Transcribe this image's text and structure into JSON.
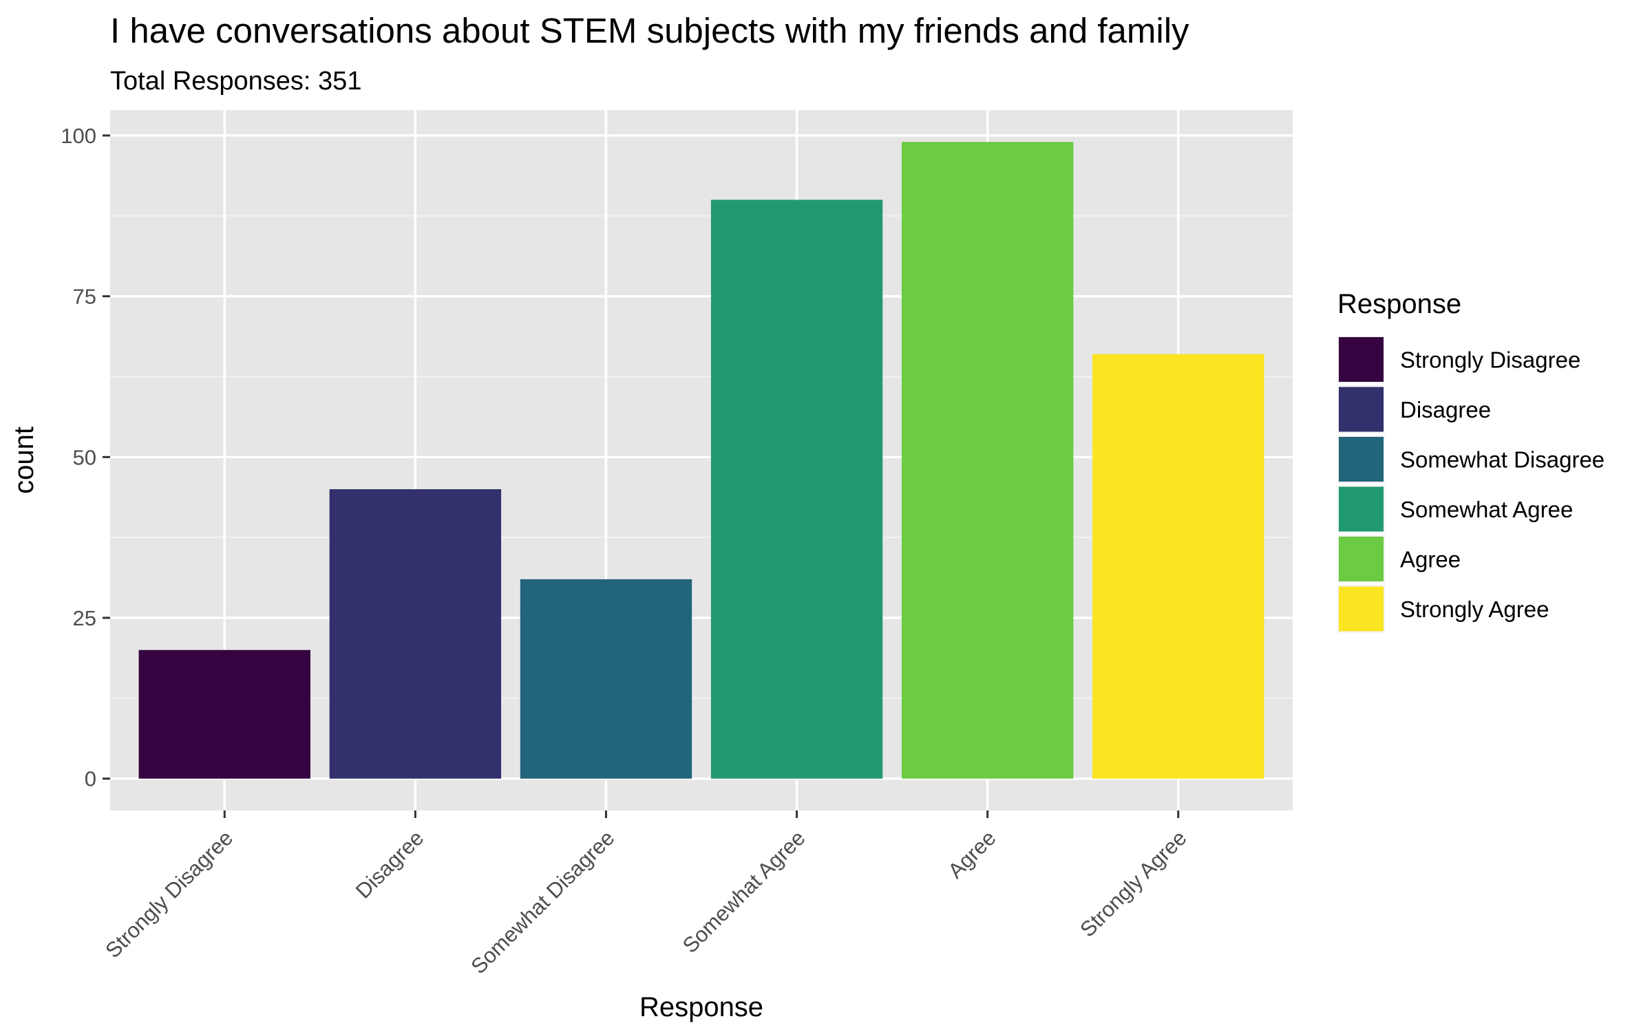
{
  "chart_data": {
    "type": "bar",
    "title": "I have conversations about STEM subjects with my friends and family",
    "subtitle": "Total Responses: 351",
    "xlabel": "Response",
    "ylabel": "count",
    "categories": [
      "Strongly Disagree",
      "Disagree",
      "Somewhat Disagree",
      "Somewhat Agree",
      "Agree",
      "Strongly Agree"
    ],
    "values": [
      20,
      45,
      31,
      90,
      99,
      66
    ],
    "colors": [
      "#350440",
      "#33306E",
      "#22647A",
      "#219A71",
      "#6BCB43",
      "#FBE420"
    ],
    "ylim": [
      -4.95,
      103.95
    ],
    "yticks": [
      0,
      25,
      50,
      75,
      100
    ],
    "grid": true,
    "legend": {
      "title": "Response",
      "position": "right",
      "entries": [
        "Strongly Disagree",
        "Disagree",
        "Somewhat Disagree",
        "Somewhat Agree",
        "Agree",
        "Strongly Agree"
      ]
    }
  }
}
